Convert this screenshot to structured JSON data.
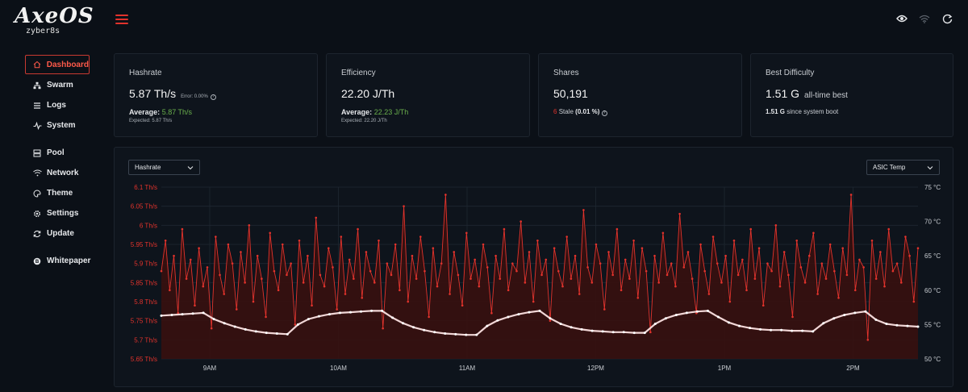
{
  "header": {
    "logo_text": "AxeOS",
    "logo_sub": "zyber8s",
    "icons": [
      "menu-icon",
      "eye-icon",
      "wifi-icon",
      "refresh-icon"
    ]
  },
  "sidebar": {
    "items": [
      {
        "label": "Dashboard",
        "icon": "home-icon",
        "active": true
      },
      {
        "label": "Swarm",
        "icon": "sitemap-icon"
      },
      {
        "label": "Logs",
        "icon": "list-icon"
      },
      {
        "label": "System",
        "icon": "pulse-icon"
      },
      {
        "label": "Pool",
        "icon": "server-icon"
      },
      {
        "label": "Network",
        "icon": "wifi-icon"
      },
      {
        "label": "Theme",
        "icon": "palette-icon"
      },
      {
        "label": "Settings",
        "icon": "gear-icon"
      },
      {
        "label": "Update",
        "icon": "sync-icon"
      },
      {
        "label": "Whitepaper",
        "icon": "bitcoin-icon"
      }
    ]
  },
  "cards": {
    "hashrate": {
      "title": "Hashrate",
      "value": "5.87 Th/s",
      "error": "Error: 0.00%",
      "average_label": "Average:",
      "average_value": "5.87 Th/s",
      "expected": "Expected: 5.87 Th/s"
    },
    "efficiency": {
      "title": "Efficiency",
      "value": "22.20 J/Th",
      "average_label": "Average:",
      "average_value": "22.23 J/Th",
      "expected": "Expected: 22.20 J/Th"
    },
    "shares": {
      "title": "Shares",
      "value": "50,191",
      "stale_count": "6",
      "stale_label": "Stale",
      "stale_pct": "(0.01 %)"
    },
    "best": {
      "title": "Best Difficulty",
      "value": "1.51 G",
      "value_note": "all-time best",
      "since_value": "1.51 G",
      "since_label": "since system boot"
    }
  },
  "chart": {
    "left_select": "Hashrate",
    "right_select": "ASIC Temp"
  },
  "colors": {
    "accent": "#e2332c",
    "green": "#6ab04c",
    "temp_line": "#f1d6d6"
  },
  "chart_data": {
    "type": "line",
    "x_ticks": [
      "9AM",
      "10AM",
      "11AM",
      "12PM",
      "1PM",
      "2PM"
    ],
    "y_left_ticks": [
      "6.1 Th/s",
      "6.05 Th/s",
      "6 Th/s",
      "5.95 Th/s",
      "5.9 Th/s",
      "5.85 Th/s",
      "5.8 Th/s",
      "5.75 Th/s",
      "5.7 Th/s",
      "5.65 Th/s"
    ],
    "y_right_ticks": [
      "75 °C",
      "70 °C",
      "65 °C",
      "60 °C",
      "55 °C",
      "50 °C"
    ],
    "ylim_left": [
      5.65,
      6.1
    ],
    "ylim_right": [
      50,
      75
    ],
    "grid": true,
    "series": [
      {
        "axis": "left",
        "color": "#e2332c",
        "values": [
          5.88,
          5.96,
          5.83,
          5.92,
          5.77,
          5.99,
          5.86,
          5.91,
          5.79,
          5.94,
          5.84,
          5.89,
          5.73,
          5.97,
          5.87,
          5.82,
          5.95,
          5.9,
          5.78,
          5.93,
          5.85,
          6.0,
          5.8,
          5.92,
          5.86,
          5.76,
          5.98,
          5.88,
          5.83,
          5.95,
          5.87,
          5.9,
          5.74,
          5.96,
          5.85,
          5.92,
          5.79,
          6.02,
          5.87,
          5.84,
          5.94,
          5.89,
          5.78,
          5.97,
          5.82,
          5.91,
          5.86,
          5.99,
          5.81,
          5.93,
          5.88,
          5.85,
          5.96,
          5.73,
          5.9,
          5.87,
          5.95,
          5.83,
          6.05,
          5.8,
          5.92,
          5.86,
          5.97,
          5.88,
          5.76,
          5.94,
          5.84,
          5.9,
          6.08,
          5.82,
          5.93,
          5.87,
          5.79,
          5.98,
          5.86,
          5.91,
          5.84,
          5.95,
          5.89,
          5.77,
          5.92,
          5.86,
          5.99,
          5.83,
          5.9,
          5.88,
          6.01,
          5.85,
          5.93,
          5.8,
          5.96,
          5.87,
          5.91,
          5.75,
          5.94,
          5.88,
          5.84,
          5.97,
          5.86,
          5.92,
          5.82,
          6.04,
          5.89,
          5.85,
          5.95,
          5.9,
          5.78,
          5.93,
          5.87,
          5.99,
          5.83,
          5.91,
          5.86,
          5.96,
          5.81,
          5.94,
          5.88,
          5.72,
          5.92,
          5.85,
          5.98,
          5.87,
          5.9,
          5.84,
          6.03,
          5.89,
          5.93,
          5.86,
          5.77,
          5.95,
          5.88,
          5.82,
          5.97,
          5.9,
          5.85,
          5.92,
          5.8,
          5.96,
          5.87,
          5.91,
          5.83,
          5.99,
          5.86,
          5.94,
          5.79,
          5.9,
          5.88,
          6.0,
          5.84,
          5.93,
          5.87,
          5.76,
          5.96,
          5.89,
          5.85,
          5.92,
          5.98,
          5.82,
          5.9,
          5.86,
          5.95,
          5.88,
          5.81,
          5.94,
          5.87,
          6.08,
          5.83,
          5.91,
          5.89,
          5.7,
          5.96,
          5.86,
          5.93,
          5.84,
          5.99,
          5.88,
          5.9,
          5.85,
          5.97,
          5.92,
          5.8,
          5.94
        ]
      },
      {
        "axis": "right",
        "color": "#f1d6d6",
        "values": [
          56.3,
          56.4,
          56.5,
          56.6,
          56.7,
          55.8,
          55.2,
          54.7,
          54.3,
          54.0,
          53.8,
          53.7,
          53.6,
          55.0,
          55.8,
          56.2,
          56.5,
          56.7,
          56.8,
          56.9,
          57.0,
          57.0,
          56.0,
          55.2,
          54.6,
          54.2,
          53.9,
          53.7,
          53.6,
          53.5,
          53.5,
          54.8,
          55.6,
          56.1,
          56.5,
          56.8,
          57.0,
          55.9,
          55.1,
          54.6,
          54.3,
          54.1,
          54.0,
          53.9,
          53.9,
          53.8,
          53.8,
          55.1,
          55.9,
          56.4,
          56.7,
          56.9,
          57.0,
          56.1,
          55.3,
          54.8,
          54.5,
          54.3,
          54.2,
          54.2,
          54.1,
          54.1,
          54.0,
          55.2,
          55.9,
          56.4,
          56.7,
          56.9,
          55.7,
          55.1,
          54.9,
          54.8,
          54.7
        ]
      }
    ]
  }
}
